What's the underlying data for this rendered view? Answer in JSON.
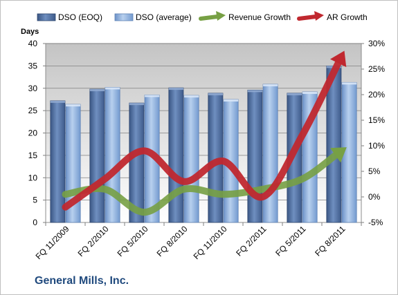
{
  "chart_data": {
    "type": "bar",
    "title": "",
    "company": "General Mills, Inc.",
    "ylabel": "Days",
    "categories": [
      "FQ 11/2009",
      "FQ 2/2010",
      "FQ 5/2010",
      "FQ 8/2010",
      "FQ 11/2010",
      "FQ 2/2011",
      "FQ 5/2011",
      "FQ 8/2011"
    ],
    "ylim": [
      0,
      40
    ],
    "yticks": [
      "0",
      "5",
      "10",
      "15",
      "20",
      "25",
      "30",
      "35",
      "40"
    ],
    "y2lim": [
      -5,
      30
    ],
    "y2ticks": [
      "-5%",
      "0%",
      "5%",
      "10%",
      "15%",
      "20%",
      "25%",
      "30%"
    ],
    "legend_position": "top",
    "bar_series": [
      {
        "name": "DSO (EOQ)",
        "values": [
          27.2,
          29.8,
          26.7,
          30.1,
          28.9,
          29.6,
          28.9,
          35.0
        ],
        "color": "#4f6b9a"
      },
      {
        "name": "DSO (average)",
        "values": [
          26.4,
          30.2,
          28.5,
          28.4,
          27.5,
          30.9,
          29.2,
          31.3
        ],
        "color": "#8fb0db"
      }
    ],
    "line_series": [
      {
        "name": "Revenue Growth",
        "axis": "right",
        "values": [
          0.5,
          1.5,
          -3.0,
          1.5,
          0.5,
          1.5,
          3.5,
          9.0
        ],
        "color": "#77a044"
      },
      {
        "name": "AR Growth",
        "axis": "right",
        "values": [
          -2.0,
          3.5,
          9.0,
          3.0,
          7.0,
          0.0,
          12.0,
          27.5
        ],
        "color": "#c0282f"
      }
    ],
    "grid": true
  }
}
